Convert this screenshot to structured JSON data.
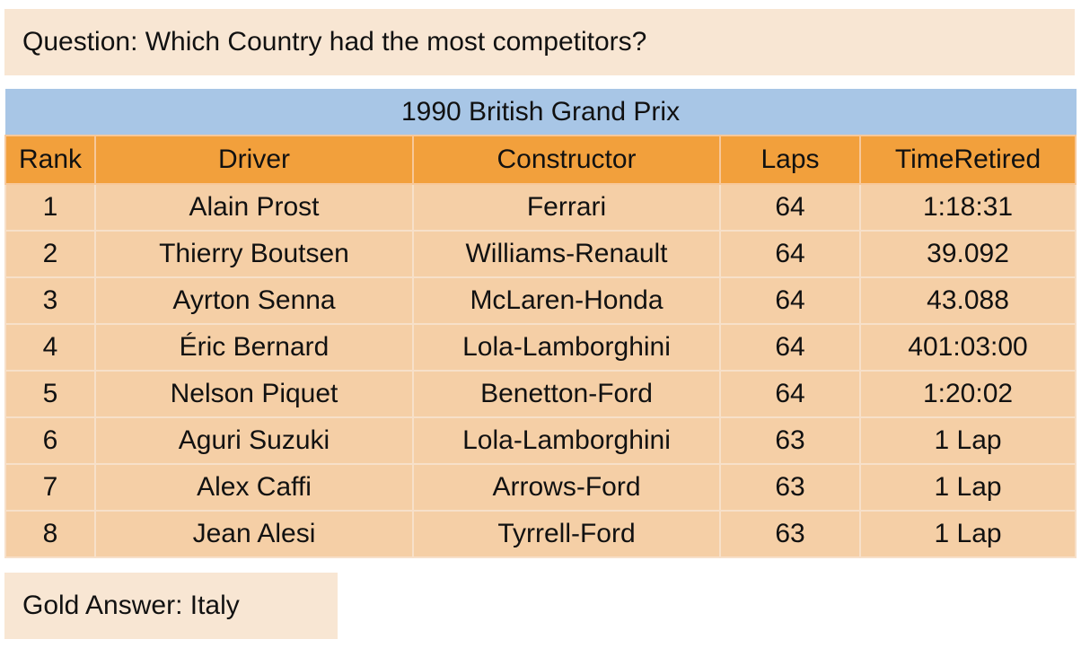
{
  "question": "Question: Which Country had the most competitors?",
  "table": {
    "title": "1990 British Grand Prix",
    "columns": [
      "Rank",
      "Driver",
      "Constructor",
      "Laps",
      "TimeRetired"
    ],
    "rows": [
      [
        "1",
        "Alain Prost",
        "Ferrari",
        "64",
        "1:18:31"
      ],
      [
        "2",
        "Thierry Boutsen",
        "Williams-Renault",
        "64",
        "39.092"
      ],
      [
        "3",
        "Ayrton Senna",
        "McLaren-Honda",
        "64",
        "43.088"
      ],
      [
        "4",
        "Éric Bernard",
        "Lola-Lamborghini",
        "64",
        "401:03:00"
      ],
      [
        "5",
        "Nelson Piquet",
        "Benetton-Ford",
        "64",
        "1:20:02"
      ],
      [
        "6",
        "Aguri Suzuki",
        "Lola-Lamborghini",
        "63",
        "1 Lap"
      ],
      [
        "7",
        "Alex Caffi",
        "Arrows-Ford",
        "63",
        "1 Lap"
      ],
      [
        "8",
        "Jean Alesi",
        "Tyrrell-Ford",
        "63",
        "1 Lap"
      ]
    ]
  },
  "answer": "Gold Answer: Italy",
  "colors": {
    "title_bg": "#a8c6e6",
    "header_bg": "#f2a03c",
    "row_bg": "#f5cfa6",
    "box_bg": "#f8e6d3"
  }
}
